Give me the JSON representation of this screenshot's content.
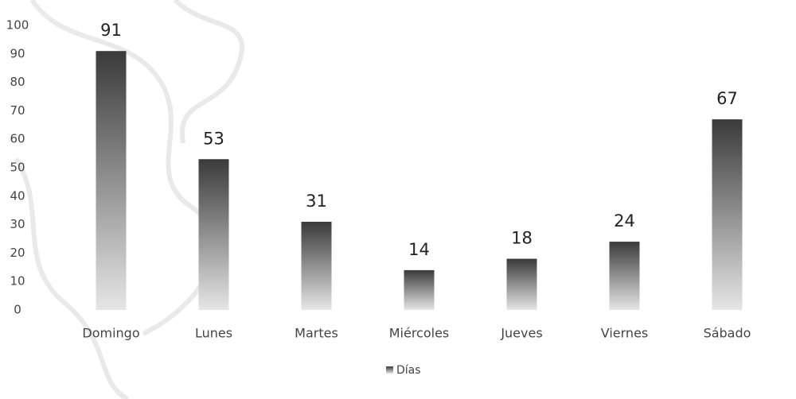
{
  "chart_data": {
    "type": "bar",
    "categories": [
      "Domingo",
      "Lunes",
      "Martes",
      "Miércoles",
      "Jueves",
      "Viernes",
      "Sábado"
    ],
    "series": [
      {
        "name": "Días",
        "color": "#3a3a3a",
        "values": [
          91,
          53,
          31,
          14,
          18,
          24,
          67
        ]
      }
    ],
    "ylim": [
      0,
      100
    ],
    "yticks": [
      0,
      10,
      20,
      30,
      40,
      50,
      60,
      70,
      80,
      90,
      100
    ],
    "grid": false,
    "legend": "bottom"
  }
}
